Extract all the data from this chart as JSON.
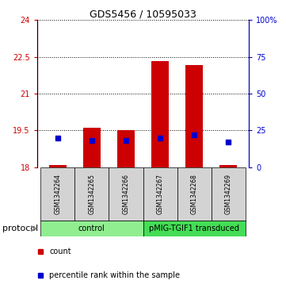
{
  "title": "GDS5456 / 10595033",
  "samples": [
    "GSM1342264",
    "GSM1342265",
    "GSM1342266",
    "GSM1342267",
    "GSM1342268",
    "GSM1342269"
  ],
  "count_values": [
    18.07,
    19.62,
    19.52,
    22.32,
    22.18,
    18.08
  ],
  "count_base": 18.0,
  "percentile_pct": [
    20.0,
    18.0,
    18.0,
    20.0,
    22.0,
    17.0
  ],
  "ylim_left": [
    18.0,
    24.0
  ],
  "ylim_right": [
    0,
    100
  ],
  "yticks_left": [
    18.0,
    19.5,
    21.0,
    22.5,
    24.0
  ],
  "yticks_right": [
    0,
    25,
    50,
    75,
    100
  ],
  "ytick_labels_left": [
    "18",
    "19.5",
    "21",
    "22.5",
    "24"
  ],
  "ytick_labels_right": [
    "0",
    "25",
    "50",
    "75",
    "100%"
  ],
  "groups": [
    {
      "label": "control",
      "samples": [
        0,
        1,
        2
      ],
      "color": "#90EE90"
    },
    {
      "label": "pMIG-TGIF1 transduced",
      "samples": [
        3,
        4,
        5
      ],
      "color": "#44DD55"
    }
  ],
  "bar_color": "#CC0000",
  "dot_color": "#0000CC",
  "protocol_label": "protocol",
  "legend_count": "count",
  "legend_pct": "percentile rank within the sample",
  "bg_color": "#FFFFFF",
  "plot_bg": "#FFFFFF",
  "gridline_color": "#000000",
  "sample_box_color": "#D3D3D3",
  "title_fontsize": 9,
  "axis_tick_fontsize": 7,
  "sample_label_fontsize": 5.5,
  "group_label_fontsize": 7,
  "protocol_fontsize": 8,
  "legend_fontsize": 7
}
